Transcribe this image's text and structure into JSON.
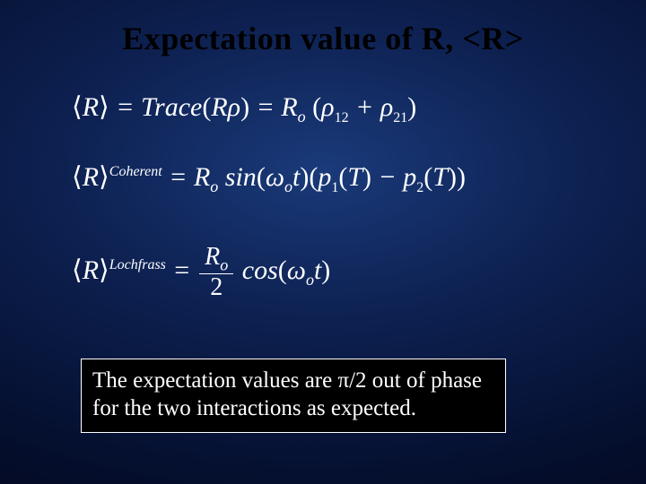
{
  "slide": {
    "title": "Expectation value of R, <R>",
    "background_gradient": {
      "inner": "#1a3a7a",
      "mid": "#0d2050",
      "outer": "#051030",
      "edge": "#020518"
    },
    "title_color": "#000000",
    "title_fontsize": 36,
    "title_fontweight": "bold",
    "equations": [
      {
        "id": "eq-trace",
        "latex": "\\langle R \\rangle = Trace(R\\rho) = R_o (\\rho_{12} + \\rho_{21})",
        "color": "#ffffff",
        "fontsize": 30
      },
      {
        "id": "eq-coherent",
        "latex": "\\langle R \\rangle^{Coherent} = R_o \\sin(\\omega_o t)(p_1(T) - p_2(T))",
        "superscript": "Coherent",
        "color": "#ffffff",
        "fontsize": 30
      },
      {
        "id": "eq-lochfrass",
        "latex": "\\langle R \\rangle^{Lochfrass} = \\frac{R_o}{2} \\cos(\\omega_o t)",
        "superscript": "Lochfrass",
        "color": "#ffffff",
        "fontsize": 30
      }
    ],
    "caption": {
      "text": "The expectation values are π/2 out of phase for the two interactions as expected.",
      "box_background": "#000000",
      "box_border_color": "#ffffff",
      "text_color": "#ffffff",
      "fontsize": 25
    }
  }
}
